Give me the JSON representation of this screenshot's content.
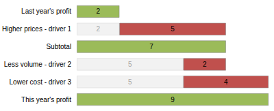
{
  "chart_data": {
    "type": "bar",
    "orientation": "horizontal",
    "stacked": true,
    "data_labels": true,
    "tick_labels": false,
    "grid": false,
    "categories": [
      "Last year's profit",
      "Higher prices - driver 1",
      "Subtotal",
      "Less volume - driver 2",
      "Lower cost - driver 3",
      "This year's profit"
    ],
    "xlim": [
      0,
      9
    ],
    "series": [
      {
        "color": "#f2f2f2",
        "values": [
          null,
          2,
          null,
          5,
          5,
          null
        ]
      },
      {
        "colors": [
          "#9bbb59",
          "#c0504d",
          "#9bbb59",
          "#c0504d",
          "#c0504d",
          "#9bbb59"
        ],
        "values": [
          2,
          5,
          7,
          2,
          4,
          9
        ]
      }
    ]
  }
}
